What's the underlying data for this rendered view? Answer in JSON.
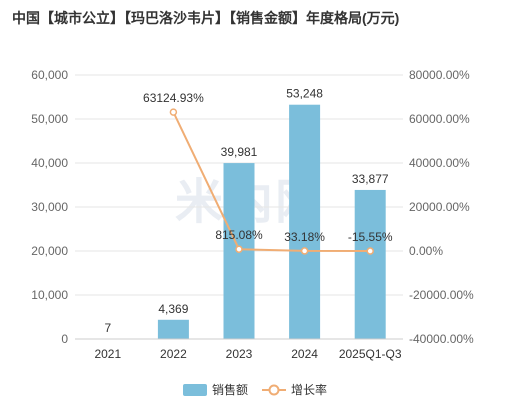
{
  "title": "中国【城市公立】【玛巴洛沙韦片】【销售金额】年度格局(万元)",
  "watermark": "米内网",
  "colors": {
    "bar": "#7bbedb",
    "line": "#f0ad74",
    "grid": "#e6e6e6",
    "axis": "#cccccc"
  },
  "legend": {
    "bar_label": "销售额",
    "line_label": "增长率"
  },
  "chart_data": {
    "type": "bar",
    "categories": [
      "2021",
      "2022",
      "2023",
      "2024",
      "2025Q1-Q3"
    ],
    "series": [
      {
        "name": "销售额",
        "type": "bar",
        "axis": "left",
        "values": [
          7,
          4369,
          39981,
          53248,
          33877
        ],
        "labels": [
          "7",
          "4,369",
          "39,981",
          "53,248",
          "33,877"
        ]
      },
      {
        "name": "增长率",
        "type": "line",
        "axis": "right",
        "values": [
          null,
          63124.93,
          815.08,
          33.18,
          -15.55
        ],
        "labels": [
          "",
          "63124.93%",
          "815.08%",
          "33.18%",
          "-15.55%"
        ]
      }
    ],
    "ylim_left": [
      0,
      60000
    ],
    "ylim_right": [
      -40000,
      80000
    ],
    "yticks_left": [
      "0",
      "10,000",
      "20,000",
      "30,000",
      "40,000",
      "50,000",
      "60,000"
    ],
    "yticks_right": [
      "-40000.00%",
      "-20000.00%",
      "0.00%",
      "20000.00%",
      "40000.00%",
      "60000.00%",
      "80000.00%"
    ],
    "grid": true,
    "legend_position": "bottom"
  }
}
